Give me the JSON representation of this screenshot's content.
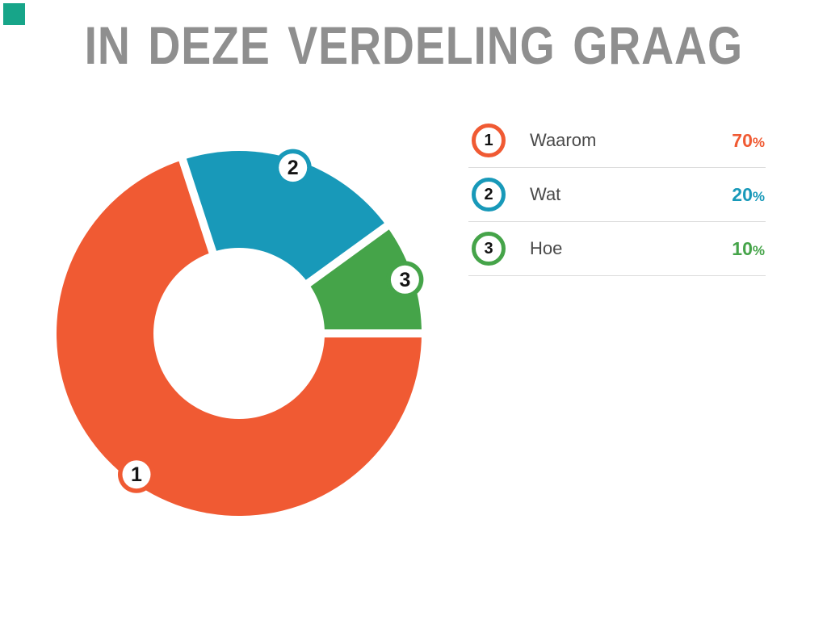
{
  "page": {
    "background": "#ffffff",
    "corner_mark_color": "#17A589"
  },
  "title": {
    "text": "IN DEZE VERDELING GRAAG",
    "color": "#8F8F8F"
  },
  "chart_data": {
    "type": "pie",
    "subtype": "donut",
    "title": "IN DEZE VERDELING GRAAG",
    "categories": [
      "Waarom",
      "Wat",
      "Hoe"
    ],
    "values": [
      70,
      20,
      10
    ],
    "unit": "%",
    "legend_position": "right",
    "inner_radius_ratio": 0.47,
    "separator_color": "#FFFFFF",
    "slices": [
      {
        "name": "Waarom",
        "value": 70,
        "pct_label": "70%",
        "color": "#F05A33",
        "marker": "1",
        "start_deg": 108,
        "end_deg": 360
      },
      {
        "name": "Wat",
        "value": 20,
        "pct_label": "20%",
        "color": "#1899B9",
        "marker": "2",
        "start_deg": 36,
        "end_deg": 108
      },
      {
        "name": "Hoe",
        "value": 10,
        "pct_label": "10%",
        "color": "#45A449",
        "marker": "3",
        "start_deg": 0,
        "end_deg": 36
      }
    ]
  },
  "legend": {
    "items": [
      {
        "number": "1",
        "label": "Waarom",
        "pct_num": "70",
        "pct_sign": "%",
        "color": "#F05A33"
      },
      {
        "number": "2",
        "label": "Wat",
        "pct_num": "20",
        "pct_sign": "%",
        "color": "#1899B9"
      },
      {
        "number": "3",
        "label": "Hoe",
        "pct_num": "10",
        "pct_sign": "%",
        "color": "#45A449"
      }
    ]
  }
}
